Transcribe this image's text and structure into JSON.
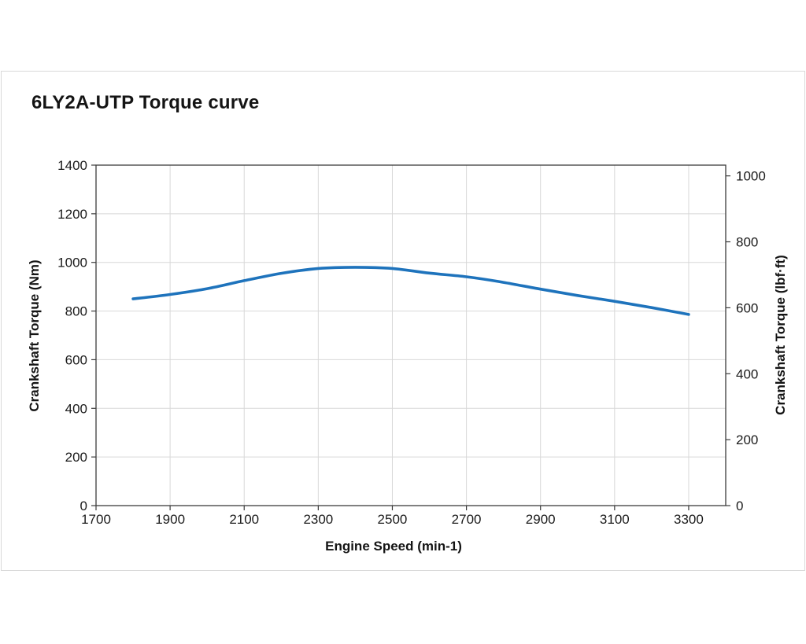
{
  "panel": {
    "title": "6LY2A-UTP Torque curve"
  },
  "chart_data": {
    "type": "line",
    "title": "6LY2A-UTP Torque curve",
    "xlabel": "Engine Speed (min-1)",
    "ylabel_left": "Crankshaft Torque (Nm)",
    "ylabel_right": "Crankshaft Torque (lbf·ft)",
    "xlim": [
      1700,
      3400
    ],
    "x_ticks": [
      1700,
      1900,
      2100,
      2300,
      2500,
      2700,
      2900,
      3100,
      3300
    ],
    "ylim_left": [
      0,
      1400
    ],
    "y_ticks_left": [
      0,
      200,
      400,
      600,
      800,
      1000,
      1200,
      1400
    ],
    "ylim_right": [
      0,
      1032.6
    ],
    "y_ticks_right": [
      0,
      200,
      400,
      600,
      800,
      1000
    ],
    "grid": true,
    "legend": "none",
    "series": [
      {
        "name": "Crankshaft Torque",
        "color": "#1e73bc",
        "x": [
          1800,
          1900,
          2000,
          2100,
          2200,
          2300,
          2400,
          2500,
          2600,
          2700,
          2800,
          2900,
          3000,
          3100,
          3200,
          3300
        ],
        "values": [
          850,
          868,
          892,
          925,
          955,
          975,
          980,
          975,
          956,
          941,
          918,
          890,
          864,
          840,
          814,
          786
        ]
      }
    ],
    "colors": {
      "curve": "#1e73bc",
      "grid": "#d8d8d8",
      "spine": "#3c3c3c",
      "tick_text": "#1a1a1a",
      "panel_border": "#d9d9d9"
    }
  }
}
